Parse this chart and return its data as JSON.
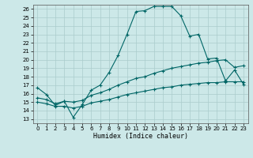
{
  "xlabel": "Humidex (Indice chaleur)",
  "xlim": [
    -0.5,
    23.5
  ],
  "ylim": [
    12.5,
    26.5
  ],
  "bg_color": "#cce8e8",
  "grid_color": "#aacccc",
  "line_color": "#006666",
  "xticks": [
    0,
    1,
    2,
    3,
    4,
    5,
    6,
    7,
    8,
    9,
    10,
    11,
    12,
    13,
    14,
    15,
    16,
    17,
    18,
    19,
    20,
    21,
    22,
    23
  ],
  "yticks": [
    13,
    14,
    15,
    16,
    17,
    18,
    19,
    20,
    21,
    22,
    23,
    24,
    25,
    26
  ],
  "line1_x": [
    0,
    1,
    2,
    3,
    4,
    5,
    6,
    7,
    8,
    9,
    10,
    11,
    12,
    13,
    14,
    15,
    16,
    17,
    18,
    19,
    20,
    21,
    22,
    23
  ],
  "line1_y": [
    16.7,
    15.9,
    14.6,
    15.1,
    13.2,
    14.7,
    16.4,
    17.0,
    18.5,
    20.5,
    23.0,
    25.7,
    25.8,
    26.3,
    26.3,
    26.3,
    25.2,
    22.8,
    23.0,
    20.1,
    20.2,
    17.5,
    18.8,
    17.1
  ],
  "line2_x": [
    0,
    1,
    2,
    3,
    4,
    5,
    6,
    7,
    8,
    9,
    10,
    11,
    12,
    13,
    14,
    15,
    16,
    17,
    18,
    19,
    20,
    21,
    22,
    23
  ],
  "line2_y": [
    15.5,
    15.3,
    14.8,
    15.1,
    15.0,
    15.2,
    15.8,
    16.1,
    16.5,
    17.0,
    17.4,
    17.8,
    18.0,
    18.4,
    18.7,
    19.0,
    19.2,
    19.4,
    19.6,
    19.7,
    19.9,
    20.0,
    19.1,
    19.3
  ],
  "line3_x": [
    0,
    1,
    2,
    3,
    4,
    5,
    6,
    7,
    8,
    9,
    10,
    11,
    12,
    13,
    14,
    15,
    16,
    17,
    18,
    19,
    20,
    21,
    22,
    23
  ],
  "line3_y": [
    15.0,
    14.8,
    14.5,
    14.5,
    14.3,
    14.5,
    14.9,
    15.1,
    15.3,
    15.6,
    15.9,
    16.1,
    16.3,
    16.5,
    16.7,
    16.8,
    17.0,
    17.1,
    17.2,
    17.3,
    17.3,
    17.4,
    17.4,
    17.4
  ]
}
